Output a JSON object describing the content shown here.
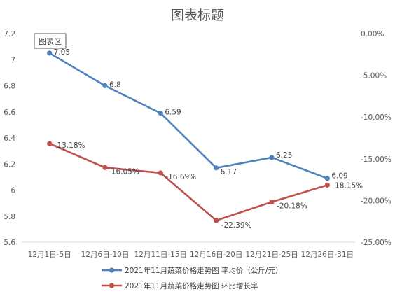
{
  "chart_data": {
    "type": "line",
    "title": "图表标题",
    "plot_area_label": "图表区",
    "categories": [
      "12月1日-5日",
      "12月6日-10日",
      "12月11日-15日",
      "12月16日-20日",
      "12月21日-25日",
      "12月26日-31日"
    ],
    "series": [
      {
        "name": "2021年11月蔬菜价格走势图 平均价（公斤/元）",
        "axis": "left",
        "values": [
          7.05,
          6.8,
          6.59,
          6.17,
          6.25,
          6.09
        ],
        "labels": [
          "7.05",
          "6.8",
          "6.59",
          "6.17",
          "6.25",
          "6.09"
        ],
        "color": "#4e81bd"
      },
      {
        "name": "2021年11月蔬菜价格走势图 环比增长率",
        "axis": "right",
        "values": [
          -13.18,
          -16.05,
          -16.69,
          -22.39,
          -20.18,
          -18.15
        ],
        "labels": [
          "-13.18%",
          "-16.05%",
          "-16.69%",
          "-22.39%",
          "-20.18%",
          "-18.15%"
        ],
        "color": "#c0504d"
      }
    ],
    "y_left": {
      "min": 5.6,
      "max": 7.2,
      "ticks": [
        "5.6",
        "5.8",
        "6",
        "6.2",
        "6.4",
        "6.6",
        "6.8",
        "7",
        "7.2"
      ]
    },
    "y_right": {
      "min": -25,
      "max": 0,
      "ticks": [
        "-25.00%",
        "-20.00%",
        "-15.00%",
        "-10.00%",
        "-5.00%",
        "0.00%"
      ]
    },
    "grid": false,
    "legend_position": "bottom"
  }
}
